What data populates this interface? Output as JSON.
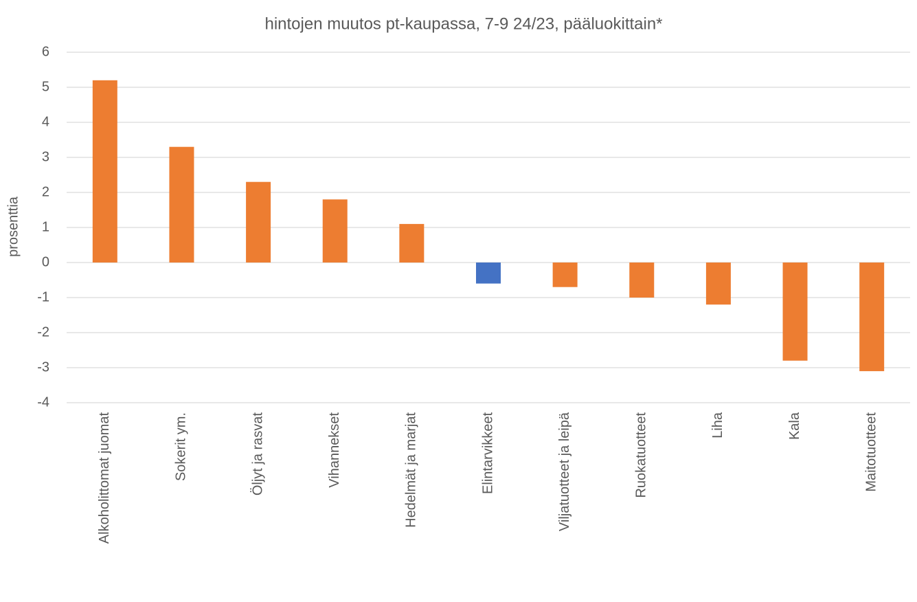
{
  "chart_data": {
    "type": "bar",
    "title": "hintojen muutos pt-kaupassa, 7-9 24/23, pääluokittain*",
    "ylabel": "prosenttia",
    "categories": [
      "Alkoholittomat juomat",
      "Sokerit ym.",
      "Öljyt ja rasvat",
      "Vihannekset",
      "Hedelmät ja marjat",
      "Elintarvikkeet",
      "Viljatuotteet ja leipä",
      "Ruokatuotteet",
      "Liha",
      "Kala",
      "Maitotuotteet"
    ],
    "values": [
      5.2,
      3.3,
      2.3,
      1.8,
      1.1,
      -0.6,
      -0.7,
      -1.0,
      -1.2,
      -2.8,
      -3.1
    ],
    "colors": [
      "#ed7d31",
      "#ed7d31",
      "#ed7d31",
      "#ed7d31",
      "#ed7d31",
      "#4472c4",
      "#ed7d31",
      "#ed7d31",
      "#ed7d31",
      "#ed7d31",
      "#ed7d31"
    ],
    "ylim": [
      -4,
      6
    ],
    "yticks": [
      -4,
      -3,
      -2,
      -1,
      0,
      1,
      2,
      3,
      4,
      5,
      6
    ],
    "grid": true
  }
}
